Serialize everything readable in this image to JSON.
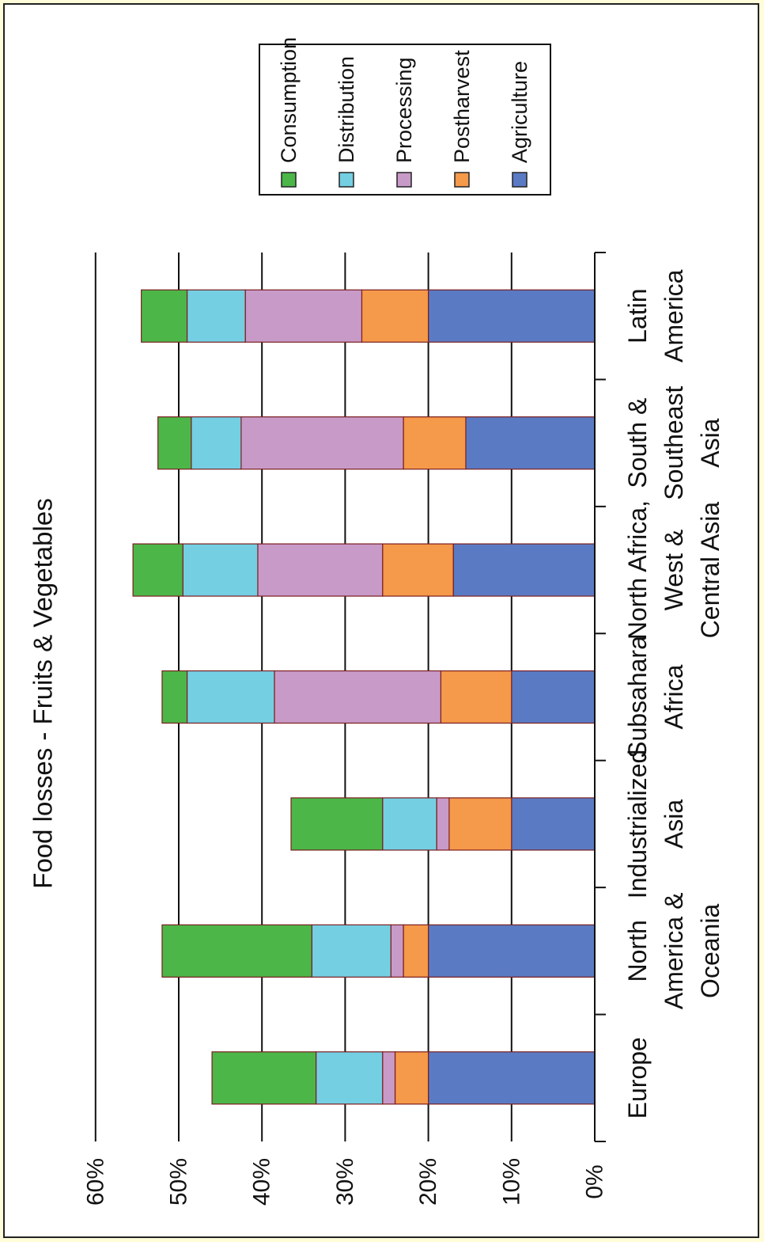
{
  "chart_data": {
    "type": "bar",
    "stacked": true,
    "orientation": "horizontal-bars-rotated-page",
    "title": "Food losses - Fruits & Vegetables",
    "categories": [
      [
        "Europe"
      ],
      [
        "North",
        "America &",
        "Oceania"
      ],
      [
        "Industrialized",
        "Asia"
      ],
      [
        "Subsahara",
        "Africa"
      ],
      [
        "North Africa,",
        "West &",
        "Central Asia"
      ],
      [
        "South &",
        "Southeast",
        "Asia"
      ],
      [
        "Latin",
        "America"
      ]
    ],
    "series": [
      {
        "name": "Agriculture",
        "color": "#5a7bc4",
        "values": [
          20,
          20,
          10,
          10,
          17,
          15.5,
          20
        ]
      },
      {
        "name": "Postharvest",
        "color": "#f5994a",
        "values": [
          4,
          3,
          7.5,
          8.5,
          8.5,
          7.5,
          8
        ]
      },
      {
        "name": "Processing",
        "color": "#c89ac8",
        "values": [
          1.5,
          1.5,
          1.5,
          20,
          15,
          19.5,
          14
        ]
      },
      {
        "name": "Distribution",
        "color": "#74cfe3",
        "values": [
          8,
          9.5,
          6.5,
          10.5,
          9,
          6,
          7
        ]
      },
      {
        "name": "Consumption",
        "color": "#4cb649",
        "values": [
          12.5,
          18,
          11,
          3,
          6,
          4,
          5.5
        ]
      }
    ],
    "legend_order": [
      "Consumption",
      "Distribution",
      "Processing",
      "Postharvest",
      "Agriculture"
    ],
    "value_ticks": [
      "0%",
      "10%",
      "20%",
      "30%",
      "40%",
      "50%",
      "60%"
    ],
    "ylim": [
      0,
      60
    ],
    "grid": true,
    "legend_placement": "top-right",
    "segment_outline_color": "#7a1e1e",
    "grid_color": "#111111"
  }
}
